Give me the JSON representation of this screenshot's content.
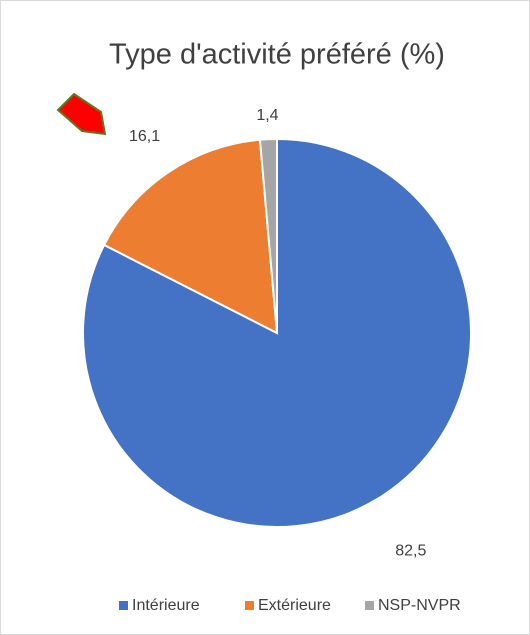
{
  "chart_data": {
    "type": "pie",
    "title": "Type d'activité préféré (%)",
    "categories": [
      "Intérieure",
      "Extérieure",
      "NSP-NVPR"
    ],
    "values": [
      82.5,
      16.1,
      1.4
    ],
    "value_labels": [
      "82,5",
      "16,1",
      "1,4"
    ],
    "colors": [
      "#4472c4",
      "#ed7d31",
      "#a5a5a5"
    ],
    "legend": "bottom"
  }
}
